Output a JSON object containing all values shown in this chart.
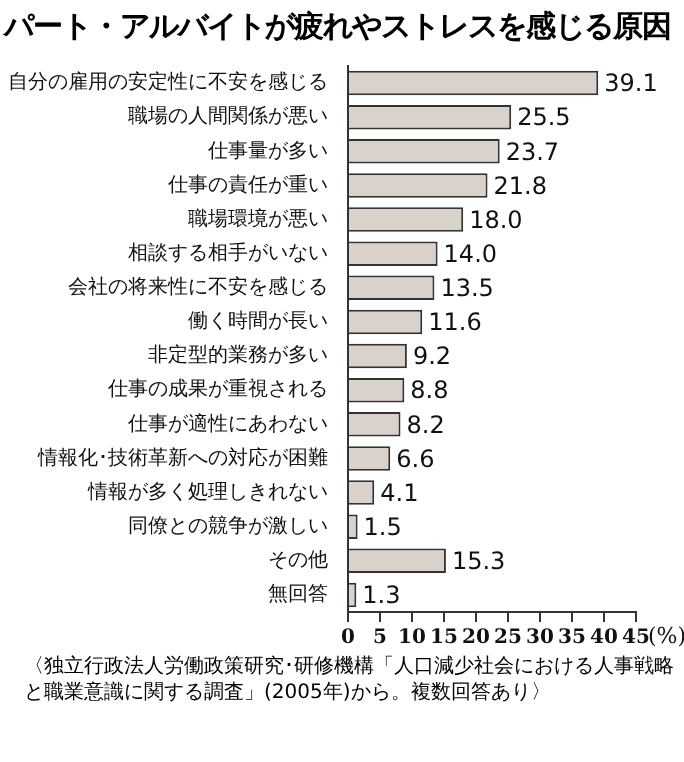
{
  "chart_data": {
    "type": "bar",
    "orientation": "horizontal",
    "title": "パート・アルバイトが疲れやストレスを感じる原因",
    "categories": [
      "自分の雇用の安定性に不安を感じる",
      "職場の人間関係が悪い",
      "仕事量が多い",
      "仕事の責任が重い",
      "職場環境が悪い",
      "相談する相手がいない",
      "会社の将来性に不安を感じる",
      "働く時間が長い",
      "非定型的業務が多い",
      "仕事の成果が重視される",
      "仕事が適性にあわない",
      "情報化･技術革新への対応が困難",
      "情報が多く処理しきれない",
      "同僚との競争が激しい",
      "その他",
      "無回答"
    ],
    "values": [
      39.1,
      25.5,
      23.7,
      21.8,
      18.0,
      14.0,
      13.5,
      11.6,
      9.2,
      8.8,
      8.2,
      6.6,
      4.1,
      1.5,
      15.3,
      1.3
    ],
    "value_labels": [
      "39.1",
      "25.5",
      "23.7",
      "21.8",
      "18.0",
      "14.0",
      "13.5",
      "11.6",
      "9.2",
      "8.8",
      "8.2",
      "6.6",
      "4.1",
      "1.5",
      "15.3",
      "1.3"
    ],
    "color": "#d9d2ca",
    "xlim": [
      0,
      45
    ],
    "xticks": [
      0,
      5,
      10,
      15,
      20,
      25,
      30,
      35,
      40,
      45
    ],
    "xlabel": "(%)",
    "grid": false,
    "legend": false,
    "annotations": [
      "〈独立行政法人労働政策研究･研修機構「人口減少社会における人事戦略と職業意識に関する調査」(2005年)から。複数回答あり〉"
    ]
  }
}
